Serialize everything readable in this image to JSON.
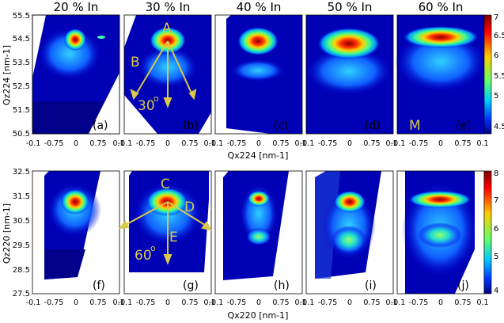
{
  "figure": {
    "column_titles": [
      "20 % In",
      "30 % In",
      "40 % In",
      "50 % In",
      "60 % In"
    ],
    "top_row": {
      "ylabel": "Qz224 [nm-1]",
      "xlabel": "Qx224 [nm-1]",
      "y_ticks": [
        "55.5",
        "54.5",
        "53.5",
        "52.5",
        "51.5",
        "50.5"
      ],
      "panel_labels": [
        "(a)",
        "(b)",
        "(c)",
        "(d)",
        "(e)"
      ],
      "colorbar_ticks": [
        "7",
        "6.5",
        "6",
        "5.5",
        "5",
        "4.5"
      ]
    },
    "bottom_row": {
      "ylabel": "Qz220 [nm-1]",
      "xlabel": "Qx220 [nm-1]",
      "y_ticks": [
        "32.5",
        "31.5",
        "30.5",
        "29.5",
        "28.5",
        "27.5"
      ],
      "panel_labels": [
        "(f)",
        "(g)",
        "(h)",
        "(i)",
        "(j)"
      ],
      "colorbar_ticks": [
        "8",
        "7",
        "6",
        "5",
        "4"
      ]
    },
    "x_ticks": [
      "-0.1",
      "-0.75",
      "0",
      "0.75",
      "0.1"
    ],
    "annotations": {
      "A": "A",
      "B": "B",
      "angle_top": "30",
      "M": "M",
      "C": "C",
      "D": "D",
      "E": "E",
      "angle_bottom": "60",
      "degree": "o"
    },
    "colors": {
      "background": "#00008f",
      "annotation": "#d9c84a"
    }
  }
}
